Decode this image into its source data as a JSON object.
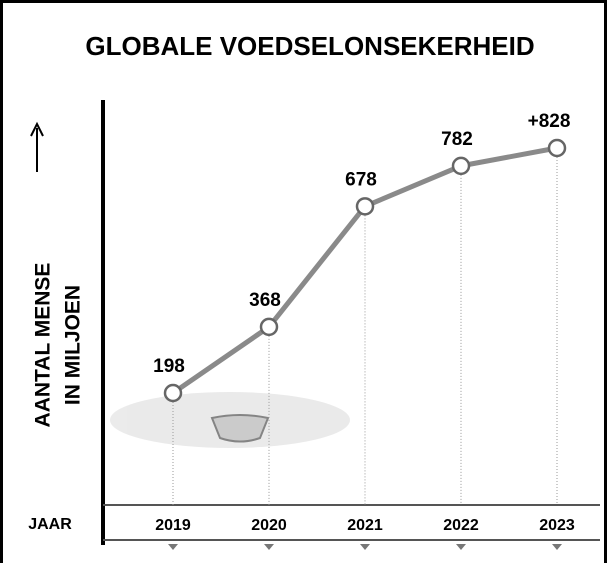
{
  "chart_data": {
    "type": "line",
    "title": "GLOBALE VOEDSELONSEKERHEID",
    "y_label": [
      "AANTAL MENSE",
      "IN MILJOEN"
    ],
    "x_label": "JAAR",
    "categories": [
      "2019",
      "2020",
      "2021",
      "2022",
      "2023"
    ],
    "values": [
      198,
      368,
      678,
      782,
      828
    ],
    "value_labels": [
      "198",
      "368",
      "678",
      "782",
      "+828"
    ],
    "color": "#8a8a8a",
    "ylim": [
      0,
      900
    ]
  }
}
